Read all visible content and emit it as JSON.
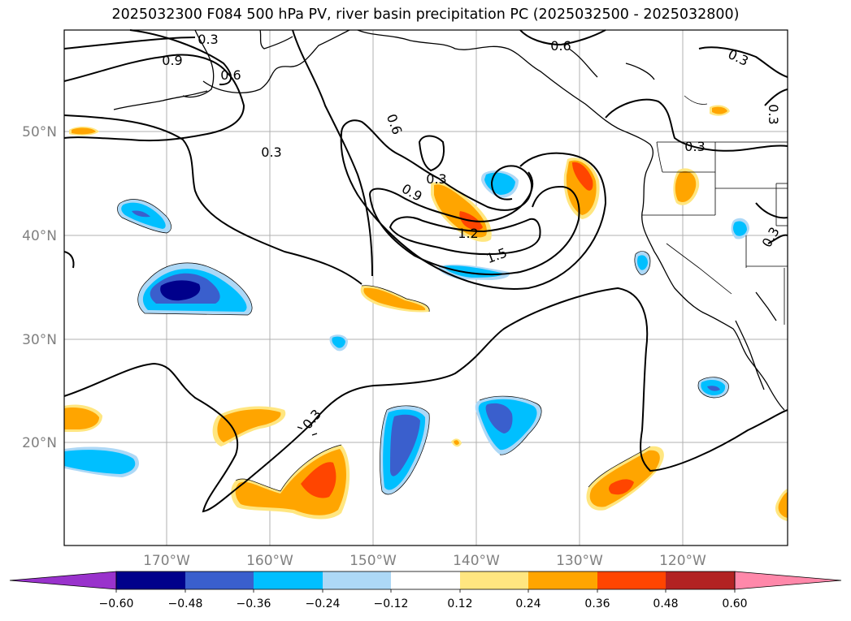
{
  "title": "2025032300 F084 500 hPa PV, river basin precipitation PC (2025032500 - 2025032800)",
  "map": {
    "lat_labels": [
      "50°N",
      "40°N",
      "30°N",
      "20°N"
    ],
    "lon_labels": [
      "170°W",
      "160°W",
      "150°W",
      "140°W",
      "130°W",
      "120°W"
    ],
    "contour_labels": [
      "0.3",
      "0.9",
      "0.6",
      "0.3",
      "0.6",
      "0.3",
      "0.9",
      "1.2",
      "1.5",
      "0.6",
      "0.3",
      "0.3",
      "0.3",
      "0.3",
      "0.3"
    ]
  },
  "colorbar": {
    "ticks": [
      "−0.60",
      "−0.48",
      "−0.36",
      "−0.24",
      "−0.12",
      "0.12",
      "0.24",
      "0.36",
      "0.48",
      "0.60"
    ],
    "colors": [
      "#9932cc",
      "#00008b",
      "#3a5fcd",
      "#00bfff",
      "#add8f6",
      "#ffffff",
      "#ffe680",
      "#ffa500",
      "#ff4500",
      "#b22222",
      "#ff88aa"
    ]
  },
  "palette": {
    "neg_dark": "#00008b",
    "neg_mid": "#3a5fcd",
    "neg": "#00bfff",
    "neg_light": "#add8f6",
    "pos_light": "#ffe680",
    "pos": "#ffa500",
    "pos_mid": "#ff4500",
    "grid": "#b0b0b0"
  }
}
